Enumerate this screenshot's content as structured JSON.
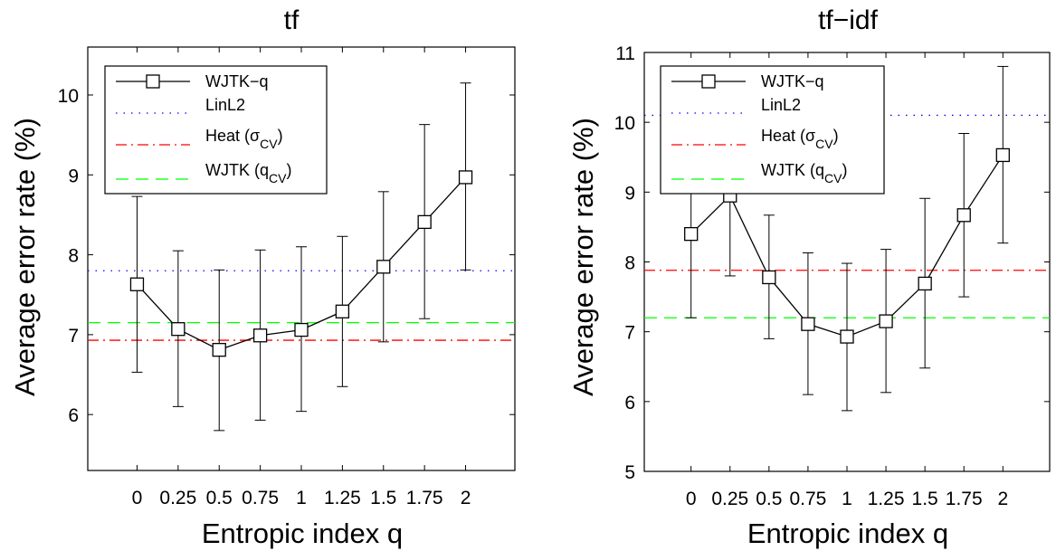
{
  "chart_data": [
    {
      "type": "line",
      "title": "tf",
      "xlabel": "Entropic index q",
      "ylabel": "Average error rate (%)",
      "x": [
        0,
        0.25,
        0.5,
        0.75,
        1,
        1.25,
        1.5,
        1.75,
        2
      ],
      "x_tick_labels": [
        "0",
        "0.25",
        "0.5",
        "0.75",
        "1",
        "1.25",
        "1.5",
        "1.75",
        "2"
      ],
      "xlim": [
        -0.3,
        2.3
      ],
      "ylim": [
        5.3,
        10.6
      ],
      "y_ticks": [
        6,
        7,
        8,
        9,
        10
      ],
      "grid": false,
      "legend_position": "top-left",
      "series": [
        {
          "name": "WJTK−q",
          "style": "solid-square",
          "color": "#000000",
          "values": [
            7.63,
            7.07,
            6.81,
            6.99,
            7.06,
            7.29,
            7.85,
            8.41,
            8.97
          ],
          "err_low": [
            6.53,
            6.1,
            5.8,
            5.93,
            6.04,
            6.35,
            6.91,
            7.2,
            7.81
          ],
          "err_high": [
            8.73,
            8.05,
            7.81,
            8.06,
            8.1,
            8.23,
            8.79,
            9.63,
            10.15
          ]
        },
        {
          "name": "LinL2",
          "style": "dotted",
          "color": "#0000ff",
          "constant": 7.8
        },
        {
          "name": "Heat (σ",
          "name_sub": "CV",
          "name_suffix": ")",
          "style": "dashdot",
          "color": "#ff0000",
          "constant": 6.93
        },
        {
          "name": "WJTK (q",
          "name_sub": "CV",
          "name_suffix": ")",
          "style": "dashed",
          "color": "#00ff00",
          "constant": 7.15
        }
      ]
    },
    {
      "type": "line",
      "title": "tf−idf",
      "xlabel": "Entropic index q",
      "ylabel": "Average error rate (%)",
      "x": [
        0,
        0.25,
        0.5,
        0.75,
        1,
        1.25,
        1.5,
        1.75,
        2
      ],
      "x_tick_labels": [
        "0",
        "0.25",
        "0.5",
        "0.75",
        "1",
        "1.25",
        "1.5",
        "1.75",
        "2"
      ],
      "xlim": [
        -0.3,
        2.3
      ],
      "ylim": [
        5,
        11
      ],
      "y_ticks": [
        5,
        6,
        7,
        8,
        9,
        10,
        11
      ],
      "grid": false,
      "legend_position": "top-left",
      "series": [
        {
          "name": "WJTK−q",
          "style": "solid-square",
          "color": "#000000",
          "values": [
            8.4,
            8.95,
            7.78,
            7.11,
            6.93,
            7.15,
            7.69,
            8.67,
            9.53
          ],
          "err_low": [
            7.2,
            7.8,
            6.9,
            6.1,
            5.87,
            6.13,
            6.48,
            7.5,
            8.27
          ],
          "err_high": [
            9.6,
            10.1,
            8.67,
            8.13,
            7.98,
            8.18,
            8.91,
            9.84,
            10.8
          ]
        },
        {
          "name": "LinL2",
          "style": "dotted",
          "color": "#0000ff",
          "constant": 10.1
        },
        {
          "name": "Heat (σ",
          "name_sub": "CV",
          "name_suffix": ")",
          "style": "dashdot",
          "color": "#ff0000",
          "constant": 7.88
        },
        {
          "name": "WJTK (q",
          "name_sub": "CV",
          "name_suffix": ")",
          "style": "dashed",
          "color": "#00ff00",
          "constant": 7.2
        }
      ]
    }
  ]
}
